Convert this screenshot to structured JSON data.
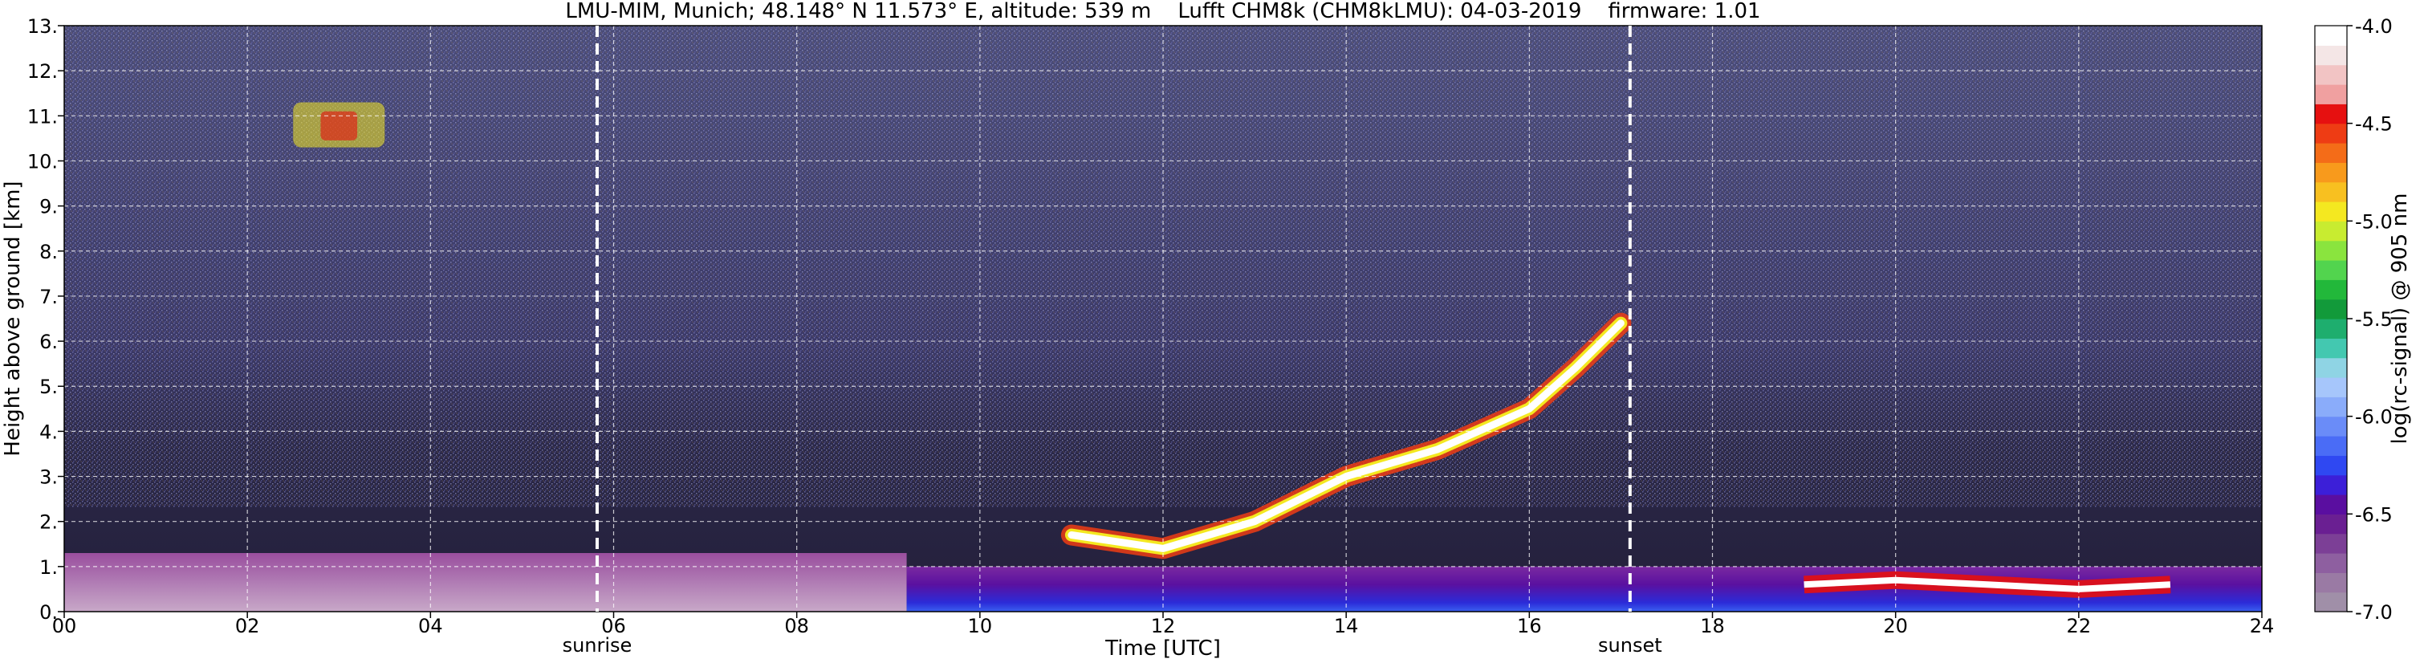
{
  "chart_data": {
    "type": "heatmap",
    "title": "LMU-MIM, Munich; 48.148° N 11.573° E, altitude: 539 m    Lufft CHM8k (CHM8kLMU): 04-03-2019    firmware: 1.01",
    "xlabel": "Time [UTC]",
    "ylabel": "Height above ground [km]",
    "xlim": [
      0,
      24
    ],
    "ylim": [
      0,
      13
    ],
    "x_ticks": [
      0,
      2,
      4,
      6,
      8,
      10,
      12,
      14,
      16,
      18,
      20,
      22,
      24
    ],
    "x_tick_labels": [
      "00",
      "02",
      "04",
      "06",
      "08",
      "10",
      "12",
      "14",
      "16",
      "18",
      "20",
      "22",
      "24"
    ],
    "y_ticks": [
      0,
      1,
      2,
      3,
      4,
      5,
      6,
      7,
      8,
      9,
      10,
      11,
      12,
      13
    ],
    "y_tick_labels": [
      "0.",
      "1.",
      "2.",
      "3.",
      "4.",
      "5.",
      "6.",
      "7.",
      "8.",
      "9.",
      "10.",
      "11.",
      "12.",
      "13."
    ],
    "grid": true,
    "colorbar": {
      "label": "log(rc-signal) @ 905 nm",
      "range": [
        -7.0,
        -4.0
      ],
      "ticks": [
        -7.0,
        -6.5,
        -6.0,
        -5.5,
        -5.0,
        -4.5,
        -4.0
      ],
      "tick_labels": [
        "-7.0",
        "-6.5",
        "-6.0",
        "-5.5",
        "-5.0",
        "-4.5",
        "-4.0"
      ],
      "colors": [
        "#a08fa8",
        "#9a7aa4",
        "#8e5fa0",
        "#7c3f96",
        "#6a1f92",
        "#5a0ea0",
        "#3c1fd8",
        "#2f48f2",
        "#4a6cf6",
        "#6a8cf8",
        "#8aacfa",
        "#a6c6fb",
        "#8fd4e4",
        "#43c8b0",
        "#1eae6e",
        "#129a3a",
        "#22b83a",
        "#52d44e",
        "#8ae43e",
        "#c8ec30",
        "#f4e820",
        "#f8c020",
        "#f89a1c",
        "#f46c18",
        "#ee3c14",
        "#e61010",
        "#f0a0a0",
        "#f2c4c4",
        "#f4e6e6",
        "#ffffff"
      ]
    },
    "annotations": [
      {
        "text": "sunrise",
        "x": 5.82
      },
      {
        "text": "sunset",
        "x": 17.1
      }
    ],
    "layers": [
      {
        "name": "surface aerosol layer",
        "x": [
          0,
          9.2
        ],
        "top_km": 1.3
      },
      {
        "name": "boundary layer",
        "x": [
          9.2,
          24
        ],
        "top_km": 1.0
      },
      {
        "name": "mixing layer top",
        "x": [
          11.0,
          12.0,
          13.0,
          14.0,
          15.0,
          16.0,
          16.5,
          17.0
        ],
        "y": [
          1.7,
          1.4,
          2.0,
          3.0,
          3.6,
          4.5,
          5.4,
          6.4
        ]
      },
      {
        "name": "low cloud",
        "x": [
          19,
          20,
          21,
          22,
          23
        ],
        "y": [
          0.6,
          0.7,
          0.6,
          0.5,
          0.6
        ]
      },
      {
        "name": "cirrus",
        "x": [
          2.5,
          3.5
        ],
        "y": [
          10.3,
          11.3
        ]
      }
    ]
  },
  "colors": {
    "background_clear": "#2e2c4e",
    "noise_high": "#4a4a7a",
    "surface_layer": "#b48ab8",
    "boundary_low": "#2b2bd8",
    "cloud": "#ffffff",
    "cloud_edge_red": "#e61010"
  }
}
